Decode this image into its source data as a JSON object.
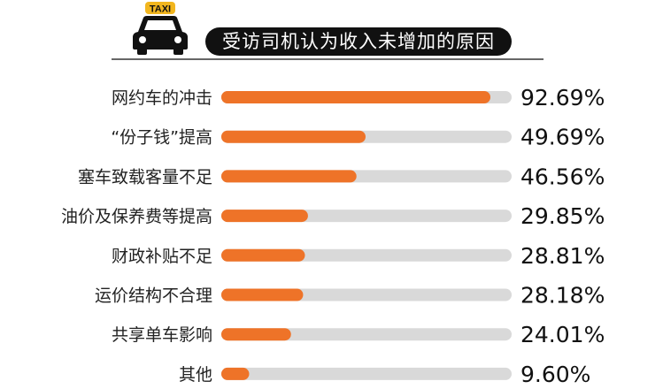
{
  "header": {
    "taxi_sign": "TAXI"
  },
  "chart_data": {
    "type": "bar",
    "orientation": "horizontal",
    "title": "受访司机认为收入未增加的原因",
    "categories": [
      "网约车的冲击",
      "“份子钱”提高",
      "塞车致载客量不足",
      "油价及保养费等提高",
      "财政补贴不足",
      "运价结构不合理",
      "共享单车影响",
      "其他"
    ],
    "values": [
      92.69,
      49.69,
      46.56,
      29.85,
      28.81,
      28.18,
      24.01,
      9.6
    ],
    "value_labels": [
      "92.69%",
      "49.69%",
      "46.56%",
      "29.85%",
      "28.81%",
      "28.18%",
      "24.01%",
      "9.60%"
    ],
    "xlim": [
      0,
      100
    ],
    "unit": "%",
    "grid": false,
    "colors": {
      "bar": "#EE7328",
      "track": "#D9D9D9"
    }
  }
}
